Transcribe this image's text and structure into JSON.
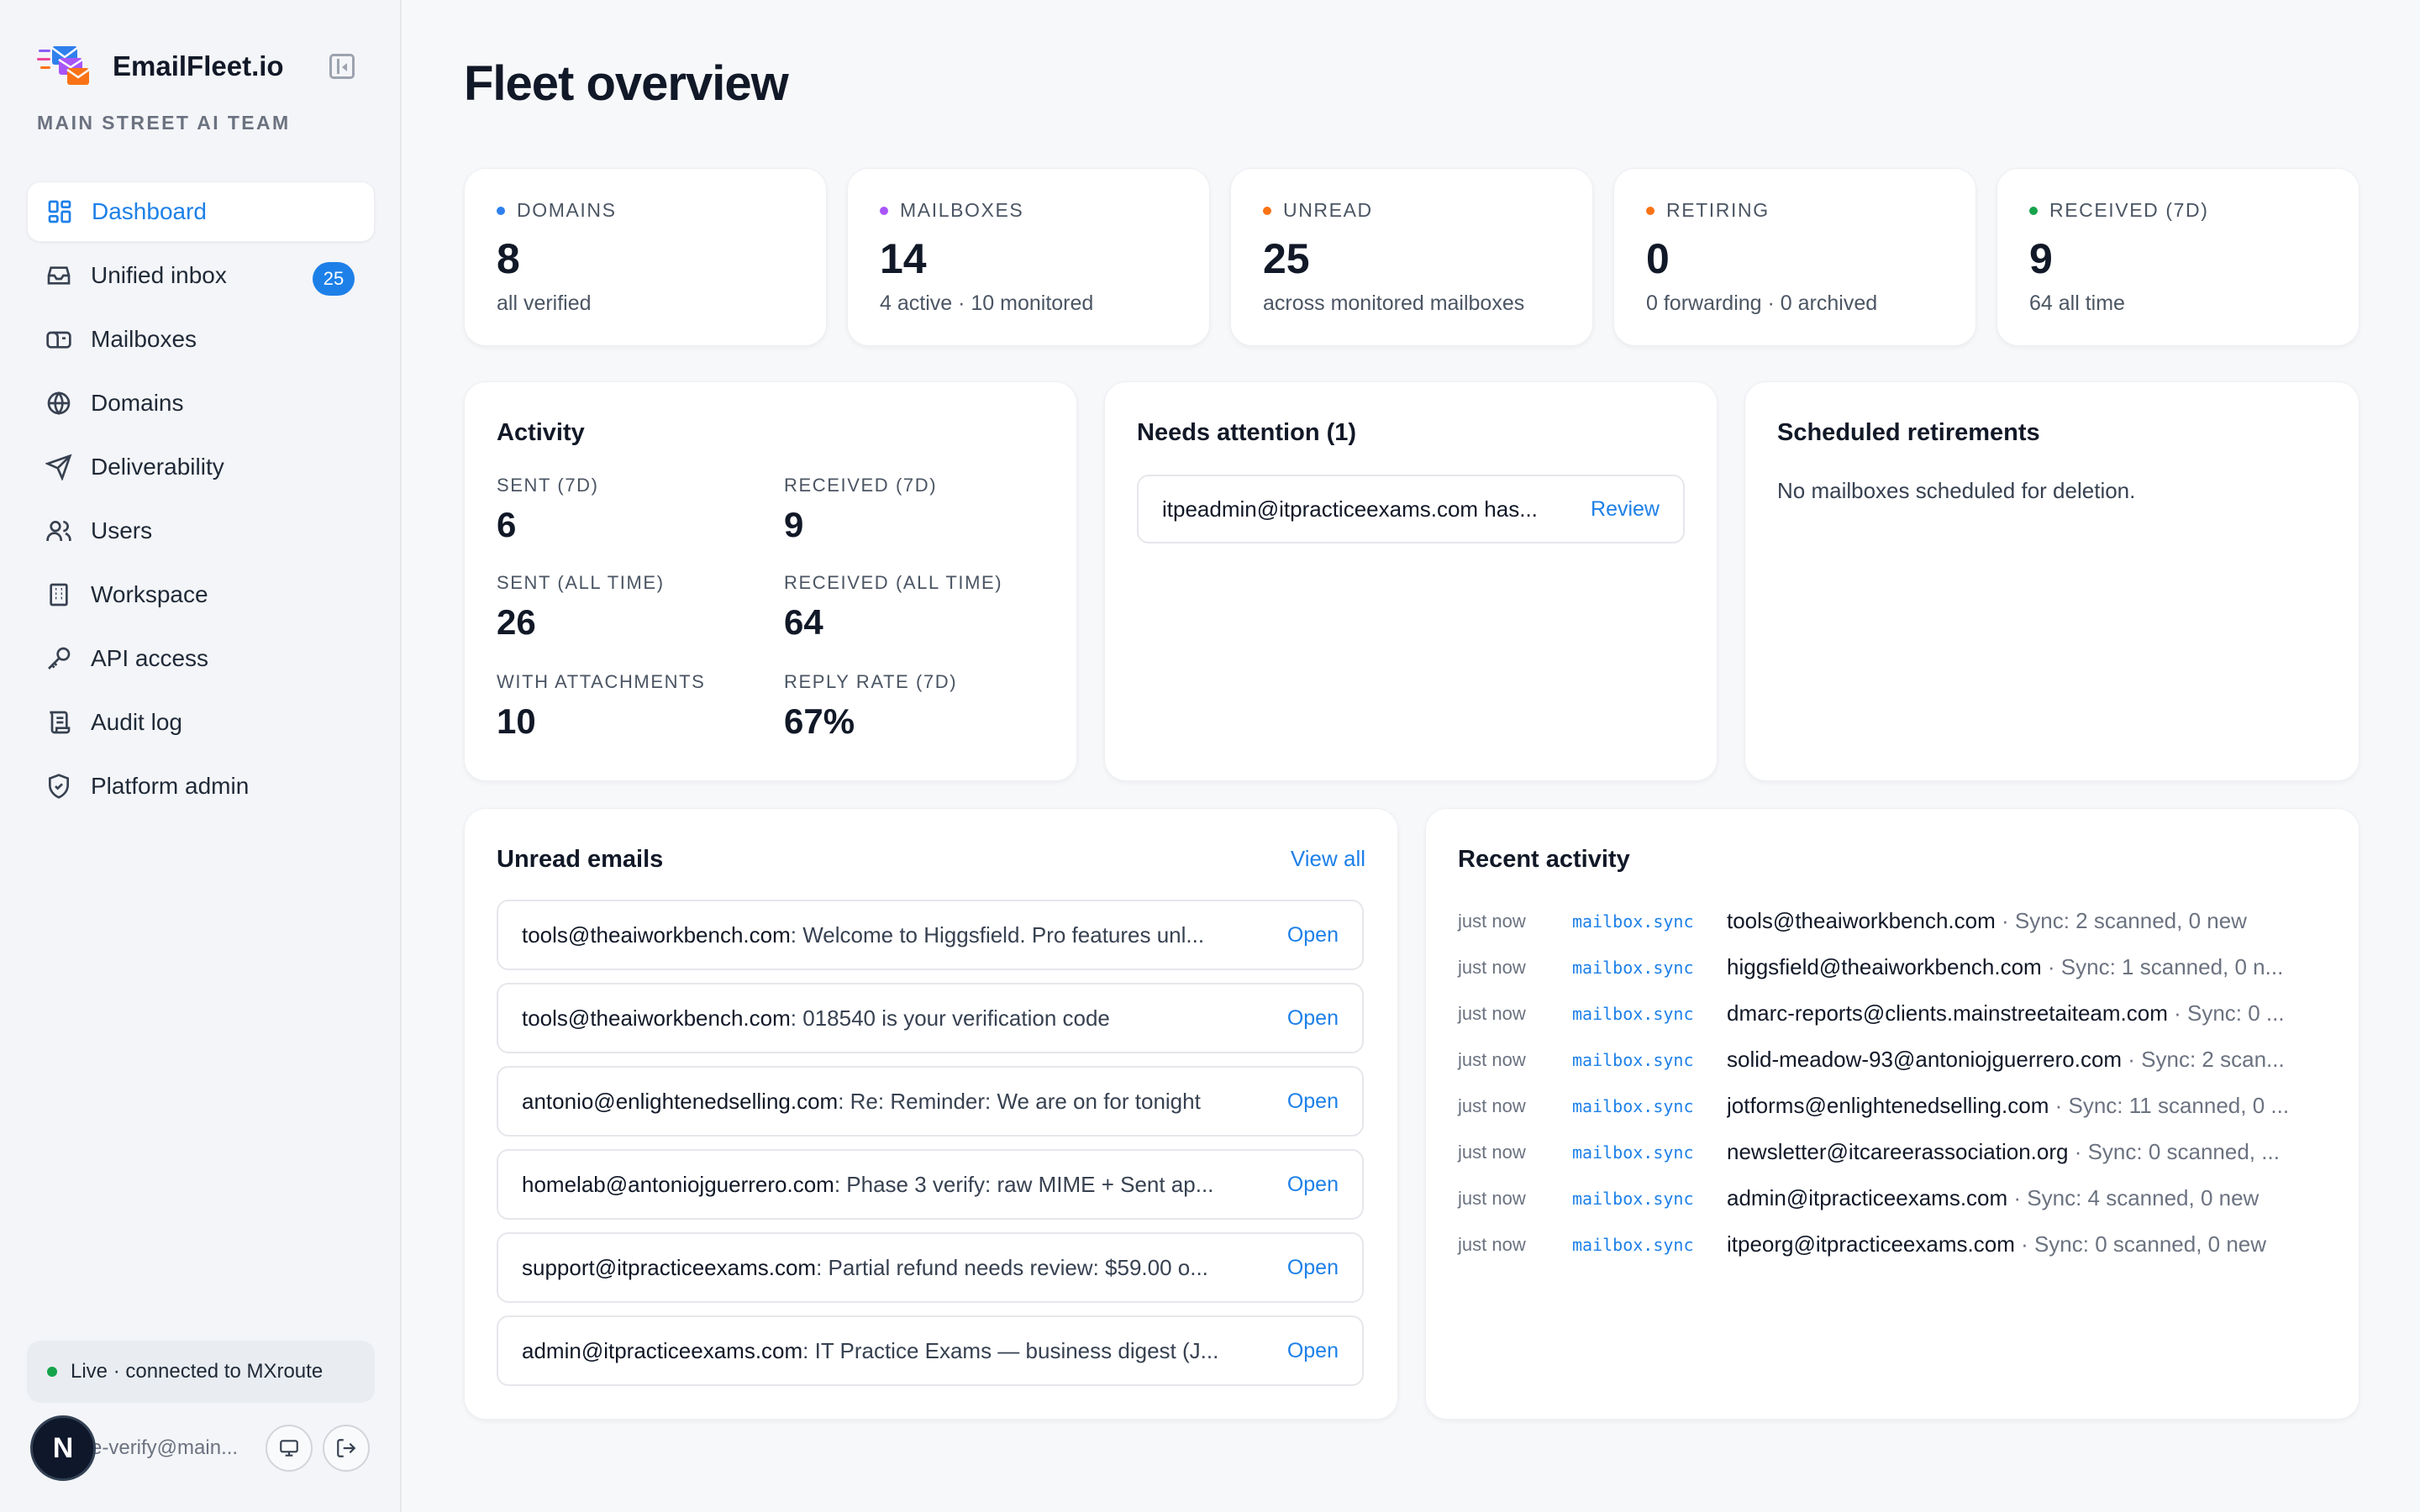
{
  "brand": {
    "name": "EmailFleet.io",
    "team": "MAIN STREET AI TEAM"
  },
  "colors": {
    "accent": "#1d80e8",
    "live": "#16a34a",
    "domains": "#2f80ed",
    "mailboxes": "#a855f7",
    "unread": "#f97316",
    "retiring": "#f97316",
    "received": "#16a34a"
  },
  "nav": [
    {
      "label": "Dashboard",
      "icon": "dashboard-icon",
      "active": true
    },
    {
      "label": "Unified inbox",
      "icon": "inbox-icon",
      "badge": "25"
    },
    {
      "label": "Mailboxes",
      "icon": "mailbox-icon"
    },
    {
      "label": "Domains",
      "icon": "globe-icon"
    },
    {
      "label": "Deliverability",
      "icon": "send-icon"
    },
    {
      "label": "Users",
      "icon": "users-icon"
    },
    {
      "label": "Workspace",
      "icon": "building-icon"
    },
    {
      "label": "API access",
      "icon": "key-icon"
    },
    {
      "label": "Audit log",
      "icon": "scroll-icon"
    },
    {
      "label": "Platform admin",
      "icon": "shield-icon"
    }
  ],
  "status": {
    "live": "Live · connected to MXroute"
  },
  "user": {
    "initial": "N",
    "email": "e-verify@main..."
  },
  "page": {
    "title": "Fleet overview"
  },
  "stats": [
    {
      "label": "DOMAINS",
      "value": "8",
      "sub": "all verified",
      "color": "#2f80ed"
    },
    {
      "label": "MAILBOXES",
      "value": "14",
      "sub": "4 active · 10 monitored",
      "color": "#a855f7"
    },
    {
      "label": "UNREAD",
      "value": "25",
      "sub": "across monitored mailboxes",
      "color": "#f97316"
    },
    {
      "label": "RETIRING",
      "value": "0",
      "sub": "0 forwarding · 0 archived",
      "color": "#f97316"
    },
    {
      "label": "RECEIVED (7D)",
      "value": "9",
      "sub": "64 all time",
      "color": "#16a34a"
    }
  ],
  "activity": {
    "title": "Activity",
    "metrics": [
      {
        "label": "SENT (7D)",
        "value": "6"
      },
      {
        "label": "RECEIVED (7D)",
        "value": "9"
      },
      {
        "label": "SENT (ALL TIME)",
        "value": "26"
      },
      {
        "label": "RECEIVED (ALL TIME)",
        "value": "64"
      },
      {
        "label": "WITH ATTACHMENTS",
        "value": "10"
      },
      {
        "label": "REPLY RATE (7D)",
        "value": "67%"
      }
    ]
  },
  "attention": {
    "title": "Needs attention (1)",
    "items": [
      {
        "text": "itpeadmin@itpracticeexams.com has...",
        "action": "Review"
      }
    ]
  },
  "retirements": {
    "title": "Scheduled retirements",
    "empty": "No mailboxes scheduled for deletion."
  },
  "unread": {
    "title": "Unread emails",
    "view_all": "View all",
    "items": [
      {
        "from": "tools@theaiworkbench.com",
        "subject": ": Welcome to Higgsfield. Pro features unl...",
        "action": "Open"
      },
      {
        "from": "tools@theaiworkbench.com",
        "subject": ": 018540 is your verification code",
        "action": "Open"
      },
      {
        "from": "antonio@enlightenedselling.com",
        "subject": ": Re: Reminder: We are on for tonight",
        "action": "Open"
      },
      {
        "from": "homelab@antoniojguerrero.com",
        "subject": ": Phase 3 verify: raw MIME + Sent ap...",
        "action": "Open"
      },
      {
        "from": "support@itpracticeexams.com",
        "subject": ": Partial refund needs review: $59.00 o...",
        "action": "Open"
      },
      {
        "from": "admin@itpracticeexams.com",
        "subject": ": IT Practice Exams — business digest (J...",
        "action": "Open"
      }
    ]
  },
  "recent": {
    "title": "Recent activity",
    "items": [
      {
        "time": "just now",
        "type": "mailbox.sync",
        "target": "tools@theaiworkbench.com",
        "detail": " · Sync: 2 scanned, 0 new"
      },
      {
        "time": "just now",
        "type": "mailbox.sync",
        "target": "higgsfield@theaiworkbench.com",
        "detail": " · Sync: 1 scanned, 0 n..."
      },
      {
        "time": "just now",
        "type": "mailbox.sync",
        "target": "dmarc-reports@clients.mainstreetaiteam.com",
        "detail": " · Sync: 0 ..."
      },
      {
        "time": "just now",
        "type": "mailbox.sync",
        "target": "solid-meadow-93@antoniojguerrero.com",
        "detail": " · Sync: 2 scan..."
      },
      {
        "time": "just now",
        "type": "mailbox.sync",
        "target": "jotforms@enlightenedselling.com",
        "detail": " · Sync: 11 scanned, 0 ..."
      },
      {
        "time": "just now",
        "type": "mailbox.sync",
        "target": "newsletter@itcareerassociation.org",
        "detail": " · Sync: 0 scanned, ..."
      },
      {
        "time": "just now",
        "type": "mailbox.sync",
        "target": "admin@itpracticeexams.com",
        "detail": " · Sync: 4 scanned, 0 new"
      },
      {
        "time": "just now",
        "type": "mailbox.sync",
        "target": "itpeorg@itpracticeexams.com",
        "detail": " · Sync: 0 scanned, 0 new"
      }
    ]
  }
}
